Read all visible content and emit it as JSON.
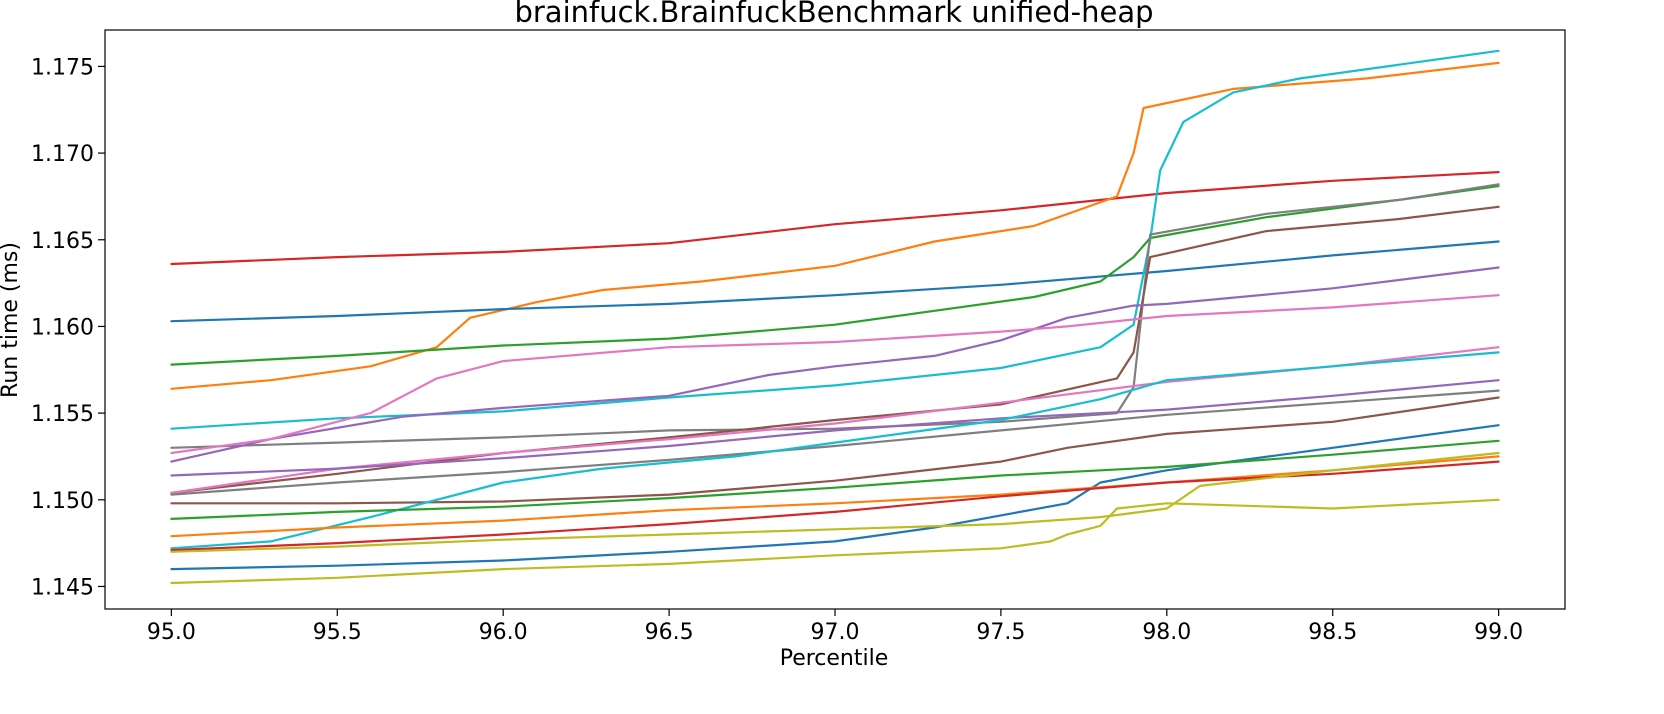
{
  "chart_data": {
    "type": "line",
    "title": "brainfuck.BrainfuckBenchmark unified-heap",
    "xlabel": "Percentile",
    "ylabel": "Run time (ms)",
    "xlim": [
      94.8,
      99.2
    ],
    "ylim": [
      1.1437,
      1.1771
    ],
    "xticks": [
      95.0,
      95.5,
      96.0,
      96.5,
      97.0,
      97.5,
      98.0,
      98.5,
      99.0
    ],
    "xtick_labels": [
      "95.0",
      "95.5",
      "96.0",
      "96.5",
      "97.0",
      "97.5",
      "98.0",
      "98.5",
      "99.0"
    ],
    "yticks": [
      1.145,
      1.15,
      1.155,
      1.16,
      1.165,
      1.17,
      1.175
    ],
    "ytick_labels": [
      "1.145",
      "1.150",
      "1.155",
      "1.160",
      "1.165",
      "1.170",
      "1.175"
    ],
    "grid": false,
    "legend": false,
    "series": [
      {
        "color": "#d62728",
        "x": [
          95.0,
          95.5,
          96.0,
          96.5,
          97.0,
          97.5,
          98.0,
          98.5,
          99.0
        ],
        "y": [
          1.1636,
          1.164,
          1.1643,
          1.1648,
          1.1659,
          1.1667,
          1.1677,
          1.1684,
          1.1689
        ]
      },
      {
        "color": "#ff7f0e",
        "x": [
          95.0,
          95.3,
          95.6,
          95.8,
          95.9,
          96.1,
          96.3,
          96.6,
          97.0,
          97.3,
          97.6,
          97.85,
          97.9,
          97.93,
          98.2,
          98.6,
          99.0
        ],
        "y": [
          1.1564,
          1.1569,
          1.1577,
          1.1588,
          1.1605,
          1.1614,
          1.1621,
          1.1626,
          1.1635,
          1.1649,
          1.1658,
          1.1675,
          1.17,
          1.1726,
          1.1737,
          1.1743,
          1.1752
        ]
      },
      {
        "color": "#1f77b4",
        "x": [
          95.0,
          95.5,
          96.0,
          96.5,
          97.0,
          97.5,
          98.0,
          98.5,
          99.0
        ],
        "y": [
          1.1603,
          1.1606,
          1.161,
          1.1613,
          1.1618,
          1.1624,
          1.1632,
          1.1641,
          1.1649
        ]
      },
      {
        "color": "#2ca02c",
        "x": [
          95.0,
          95.5,
          96.0,
          96.5,
          97.0,
          97.3,
          97.6,
          97.8,
          97.9,
          97.95,
          98.3,
          98.7,
          99.0
        ],
        "y": [
          1.1578,
          1.1583,
          1.1589,
          1.1593,
          1.1601,
          1.1609,
          1.1617,
          1.1626,
          1.164,
          1.1651,
          1.1663,
          1.1673,
          1.1681
        ]
      },
      {
        "color": "#17becf",
        "x": [
          95.0,
          95.5,
          96.0,
          96.5,
          97.0,
          97.5,
          97.8,
          97.9,
          97.95,
          97.98,
          98.05,
          98.2,
          98.4,
          98.7,
          99.0
        ],
        "y": [
          1.1541,
          1.1547,
          1.1551,
          1.1559,
          1.1566,
          1.1576,
          1.1588,
          1.1601,
          1.165,
          1.169,
          1.1718,
          1.1735,
          1.1743,
          1.1751,
          1.1759
        ]
      },
      {
        "color": "#7f7f7f",
        "x": [
          95.0,
          95.5,
          96.0,
          96.5,
          97.0,
          97.5,
          97.85,
          97.9,
          97.95,
          98.3,
          98.7,
          99.0
        ],
        "y": [
          1.153,
          1.1533,
          1.1536,
          1.154,
          1.1541,
          1.1545,
          1.155,
          1.1565,
          1.1653,
          1.1665,
          1.1673,
          1.1682
        ]
      },
      {
        "color": "#8c564b",
        "x": [
          95.0,
          95.5,
          96.0,
          96.5,
          97.0,
          97.5,
          97.85,
          97.9,
          97.95,
          98.3,
          98.7,
          99.0
        ],
        "y": [
          1.1504,
          1.1515,
          1.1527,
          1.1536,
          1.1546,
          1.1555,
          1.157,
          1.1585,
          1.164,
          1.1655,
          1.1662,
          1.1669
        ]
      },
      {
        "color": "#9467bd",
        "x": [
          95.0,
          95.3,
          95.7,
          96.0,
          96.5,
          96.8,
          97.0,
          97.3,
          97.5,
          97.7,
          97.9,
          98.0,
          98.5,
          99.0
        ],
        "y": [
          1.1522,
          1.1535,
          1.1548,
          1.1553,
          1.156,
          1.1572,
          1.1577,
          1.1583,
          1.1592,
          1.1605,
          1.1612,
          1.1613,
          1.1622,
          1.1634
        ]
      },
      {
        "color": "#e377c2",
        "x": [
          95.0,
          95.3,
          95.6,
          95.8,
          96.0,
          96.5,
          97.0,
          97.5,
          97.7,
          98.0,
          98.5,
          99.0
        ],
        "y": [
          1.1527,
          1.1535,
          1.155,
          1.157,
          1.158,
          1.1588,
          1.1591,
          1.1597,
          1.16,
          1.1606,
          1.1611,
          1.1618
        ]
      },
      {
        "color": "#e377c2",
        "x": [
          95.0,
          95.5,
          96.0,
          96.5,
          97.0,
          97.5,
          98.0,
          98.5,
          99.0
        ],
        "y": [
          1.1504,
          1.1518,
          1.1527,
          1.1535,
          1.1544,
          1.1556,
          1.1568,
          1.1577,
          1.1588
        ]
      },
      {
        "color": "#9467bd",
        "x": [
          95.0,
          95.5,
          96.0,
          96.5,
          97.0,
          97.5,
          98.0,
          98.5,
          99.0
        ],
        "y": [
          1.1514,
          1.1518,
          1.1524,
          1.1531,
          1.154,
          1.1547,
          1.1552,
          1.156,
          1.1569
        ]
      },
      {
        "color": "#7f7f7f",
        "x": [
          95.0,
          95.5,
          96.0,
          96.5,
          97.0,
          97.5,
          98.0,
          98.5,
          99.0
        ],
        "y": [
          1.1503,
          1.151,
          1.1516,
          1.1523,
          1.1531,
          1.154,
          1.1549,
          1.1556,
          1.1563
        ]
      },
      {
        "color": "#8c564b",
        "x": [
          95.0,
          95.5,
          96.0,
          96.5,
          97.0,
          97.5,
          97.7,
          98.0,
          98.5,
          99.0
        ],
        "y": [
          1.1498,
          1.1498,
          1.1499,
          1.1503,
          1.1511,
          1.1522,
          1.153,
          1.1538,
          1.1545,
          1.1559
        ]
      },
      {
        "color": "#17becf",
        "x": [
          95.0,
          95.3,
          95.6,
          96.0,
          96.3,
          96.7,
          97.0,
          97.5,
          97.8,
          98.0,
          98.5,
          99.0
        ],
        "y": [
          1.1472,
          1.1476,
          1.149,
          1.151,
          1.1518,
          1.1525,
          1.1533,
          1.1546,
          1.1558,
          1.1569,
          1.1577,
          1.1585
        ]
      },
      {
        "color": "#1f77b4",
        "x": [
          95.0,
          95.5,
          96.0,
          96.5,
          97.0,
          97.3,
          97.5,
          97.7,
          97.8,
          98.0,
          98.5,
          99.0
        ],
        "y": [
          1.146,
          1.1462,
          1.1465,
          1.147,
          1.1476,
          1.1484,
          1.1491,
          1.1498,
          1.151,
          1.1517,
          1.153,
          1.1543
        ]
      },
      {
        "color": "#2ca02c",
        "x": [
          95.0,
          95.5,
          96.0,
          96.5,
          97.0,
          97.5,
          98.0,
          98.5,
          99.0
        ],
        "y": [
          1.1489,
          1.1493,
          1.1496,
          1.1501,
          1.1507,
          1.1514,
          1.1519,
          1.1526,
          1.1534
        ]
      },
      {
        "color": "#ff7f0e",
        "x": [
          95.0,
          95.5,
          96.0,
          96.5,
          97.0,
          97.5,
          98.0,
          98.5,
          99.0
        ],
        "y": [
          1.1479,
          1.1484,
          1.1488,
          1.1494,
          1.1498,
          1.1503,
          1.151,
          1.1517,
          1.1525
        ]
      },
      {
        "color": "#d62728",
        "x": [
          95.0,
          95.5,
          96.0,
          96.5,
          97.0,
          97.5,
          98.0,
          98.5,
          99.0
        ],
        "y": [
          1.1471,
          1.1475,
          1.148,
          1.1486,
          1.1493,
          1.1502,
          1.151,
          1.1515,
          1.1522
        ]
      },
      {
        "color": "#bcbd22",
        "x": [
          95.0,
          95.5,
          96.0,
          96.5,
          97.0,
          97.5,
          97.8,
          98.0,
          98.1,
          98.5,
          99.0
        ],
        "y": [
          1.147,
          1.1473,
          1.1477,
          1.148,
          1.1483,
          1.1486,
          1.149,
          1.1495,
          1.1508,
          1.1517,
          1.1527
        ]
      },
      {
        "color": "#bcbd22",
        "x": [
          95.0,
          95.5,
          96.0,
          96.5,
          97.0,
          97.5,
          97.65,
          97.7,
          97.8,
          97.85,
          98.0,
          98.5,
          99.0
        ],
        "y": [
          1.1452,
          1.1455,
          1.146,
          1.1463,
          1.1468,
          1.1472,
          1.1476,
          1.148,
          1.1485,
          1.1495,
          1.1498,
          1.1495,
          1.15
        ]
      }
    ]
  }
}
